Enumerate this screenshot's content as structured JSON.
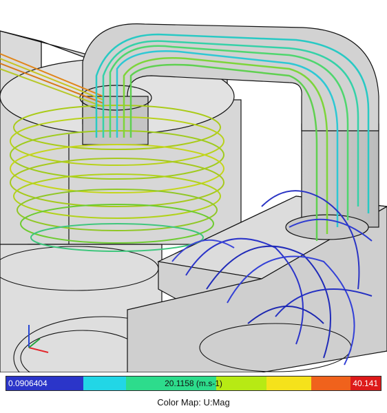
{
  "viewport": {
    "scene": "cfd-streamline-render",
    "colors": {
      "background": "#ffffff",
      "geometry_fill": "#d6d6d6",
      "geometry_edge": "#111111",
      "axis_x": "#e3262b",
      "axis_y": "#23a33a",
      "axis_z": "#2646d4"
    }
  },
  "colorbar": {
    "min_label": "0.0906404",
    "mid_label": "20.1158 (m.s-1)",
    "max_label": "40.141",
    "segments": [
      {
        "name": "blue",
        "color": "#2b35c9"
      },
      {
        "name": "cyan",
        "color": "#22d6e6"
      },
      {
        "name": "green",
        "color": "#2ddc8c"
      },
      {
        "name": "lime",
        "color": "#b7ea14"
      },
      {
        "name": "yellow",
        "color": "#f5e21b"
      },
      {
        "name": "orange",
        "color": "#f0621c"
      },
      {
        "name": "red",
        "color": "#dd1a1a"
      }
    ],
    "title": "Color Map: U:Mag"
  }
}
